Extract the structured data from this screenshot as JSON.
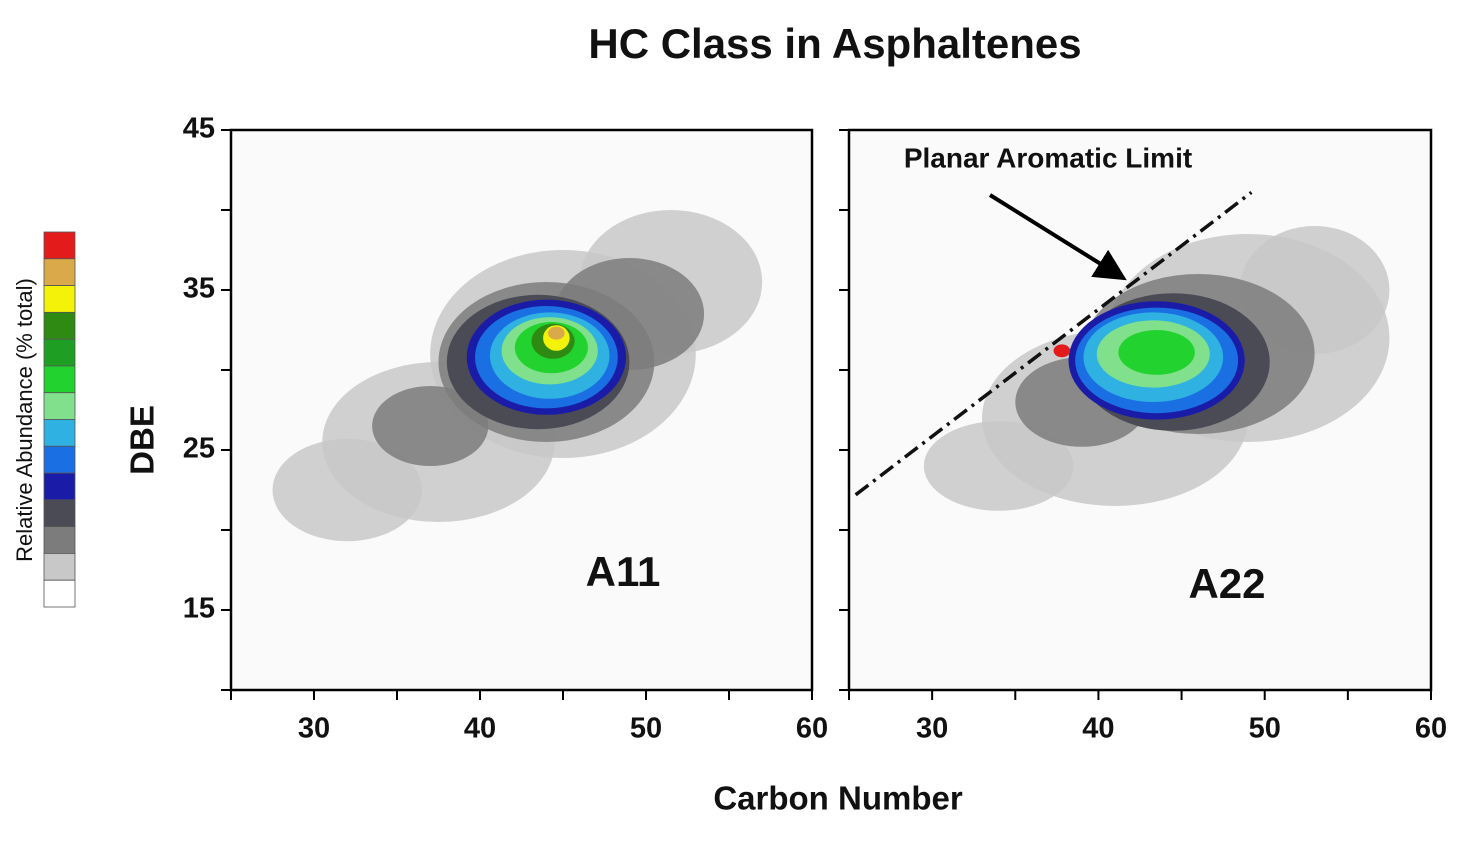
{
  "title": "HC Class in Asphaltenes",
  "x_label": "Carbon Number",
  "y_label": "DBE",
  "colorbar": {
    "label": "Relative Abundance (% total)",
    "colors": [
      "#e41b1b",
      "#d9a94a",
      "#f5f20a",
      "#2e8a12",
      "#1f9e24",
      "#22d22e",
      "#80e08c",
      "#2fb2e2",
      "#1a70e2",
      "#1a1ca8",
      "#4a4b55",
      "#7c7c7c",
      "#c8c8c8",
      "#ffffff"
    ]
  },
  "chart_data": [
    {
      "type": "heatmap",
      "annotation": "A11",
      "xlim": [
        25,
        60
      ],
      "ylim": [
        10,
        45
      ],
      "xticks": [
        {
          "value": 25,
          "label": null
        },
        30,
        {
          "value": 35,
          "label": null
        },
        40,
        {
          "value": 45,
          "label": null
        },
        50,
        {
          "value": 55,
          "label": null
        },
        60
      ],
      "yticks": [
        {
          "value": 10,
          "label": null
        },
        15,
        {
          "value": 20,
          "label": null
        },
        25,
        {
          "value": 30,
          "label": null
        },
        35,
        {
          "value": 40,
          "label": null
        },
        45
      ],
      "regions": [
        {
          "x": 32,
          "y": 22.5,
          "rx": 4.5,
          "ry": 3.2,
          "level": 12
        },
        {
          "x": 37.5,
          "y": 25.5,
          "rx": 7,
          "ry": 5,
          "level": 12
        },
        {
          "x": 45,
          "y": 31,
          "rx": 8,
          "ry": 6.5,
          "level": 12
        },
        {
          "x": 51.5,
          "y": 35.5,
          "rx": 5.5,
          "ry": 4.5,
          "level": 12
        },
        {
          "x": 37,
          "y": 26.5,
          "rx": 3.5,
          "ry": 2.5,
          "level": 11
        },
        {
          "x": 44,
          "y": 30.5,
          "rx": 6.5,
          "ry": 5,
          "level": 11
        },
        {
          "x": 49,
          "y": 33.5,
          "rx": 4.5,
          "ry": 3.5,
          "level": 11
        },
        {
          "x": 43.5,
          "y": 30.5,
          "rx": 5.5,
          "ry": 4.2,
          "level": 10
        },
        {
          "x": 44,
          "y": 30.8,
          "rx": 4.8,
          "ry": 3.6,
          "level": 9
        },
        {
          "x": 44,
          "y": 30.8,
          "rx": 4.3,
          "ry": 3.2,
          "level": 8
        },
        {
          "x": 44.2,
          "y": 30.9,
          "rx": 3.6,
          "ry": 2.7,
          "level": 7
        },
        {
          "x": 44.2,
          "y": 31.2,
          "rx": 2.9,
          "ry": 2.1,
          "level": 6
        },
        {
          "x": 44.3,
          "y": 31.4,
          "rx": 2.2,
          "ry": 1.6,
          "level": 5
        },
        {
          "x": 44.4,
          "y": 31.8,
          "rx": 1.3,
          "ry": 1.1,
          "level": 3
        },
        {
          "x": 44.6,
          "y": 32,
          "rx": 0.8,
          "ry": 0.8,
          "level": 2
        },
        {
          "x": 44.6,
          "y": 32.3,
          "rx": 0.5,
          "ry": 0.4,
          "level": 1
        }
      ]
    },
    {
      "type": "heatmap",
      "annotation": "A22",
      "limit_label": "Planar Aromatic Limit",
      "limit_line": {
        "x": [
          25.4,
          49.2
        ],
        "y": [
          22.2,
          41.1
        ]
      },
      "xlim": [
        25,
        60
      ],
      "ylim": [
        10,
        45
      ],
      "xticks": [
        {
          "value": 25,
          "label": null
        },
        30,
        {
          "value": 35,
          "label": null
        },
        40,
        {
          "value": 45,
          "label": null
        },
        50,
        {
          "value": 55,
          "label": null
        },
        60
      ],
      "yticks": [
        {
          "value": 10,
          "label": null
        },
        {
          "value": 15,
          "label": null
        },
        {
          "value": 20,
          "label": null
        },
        {
          "value": 25,
          "label": null
        },
        {
          "value": 30,
          "label": null
        },
        {
          "value": 35,
          "label": null
        },
        {
          "value": 40,
          "label": null
        },
        {
          "value": 45,
          "label": null
        }
      ],
      "regions": [
        {
          "x": 34,
          "y": 24,
          "rx": 4.5,
          "ry": 2.8,
          "level": 12
        },
        {
          "x": 41,
          "y": 27,
          "rx": 8,
          "ry": 5.5,
          "level": 12
        },
        {
          "x": 49,
          "y": 32,
          "rx": 8.5,
          "ry": 6.5,
          "level": 12
        },
        {
          "x": 53,
          "y": 35,
          "rx": 4.5,
          "ry": 4,
          "level": 12
        },
        {
          "x": 39,
          "y": 28,
          "rx": 4,
          "ry": 2.8,
          "level": 11
        },
        {
          "x": 46,
          "y": 31,
          "rx": 7,
          "ry": 5,
          "level": 11
        },
        {
          "x": 44.5,
          "y": 30.5,
          "rx": 5.8,
          "ry": 4.3,
          "level": 10
        },
        {
          "x": 43.5,
          "y": 30.6,
          "rx": 5.3,
          "ry": 3.7,
          "level": 9
        },
        {
          "x": 43.5,
          "y": 30.6,
          "rx": 4.9,
          "ry": 3.3,
          "level": 8
        },
        {
          "x": 43.3,
          "y": 30.8,
          "rx": 4.2,
          "ry": 2.8,
          "level": 7
        },
        {
          "x": 43.3,
          "y": 31,
          "rx": 3.4,
          "ry": 2.1,
          "level": 6
        },
        {
          "x": 43.5,
          "y": 31.1,
          "rx": 2.3,
          "ry": 1.4,
          "level": 5
        },
        {
          "x": 37.8,
          "y": 31.2,
          "rx": 0.5,
          "ry": 0.4,
          "level": 0
        }
      ]
    }
  ]
}
